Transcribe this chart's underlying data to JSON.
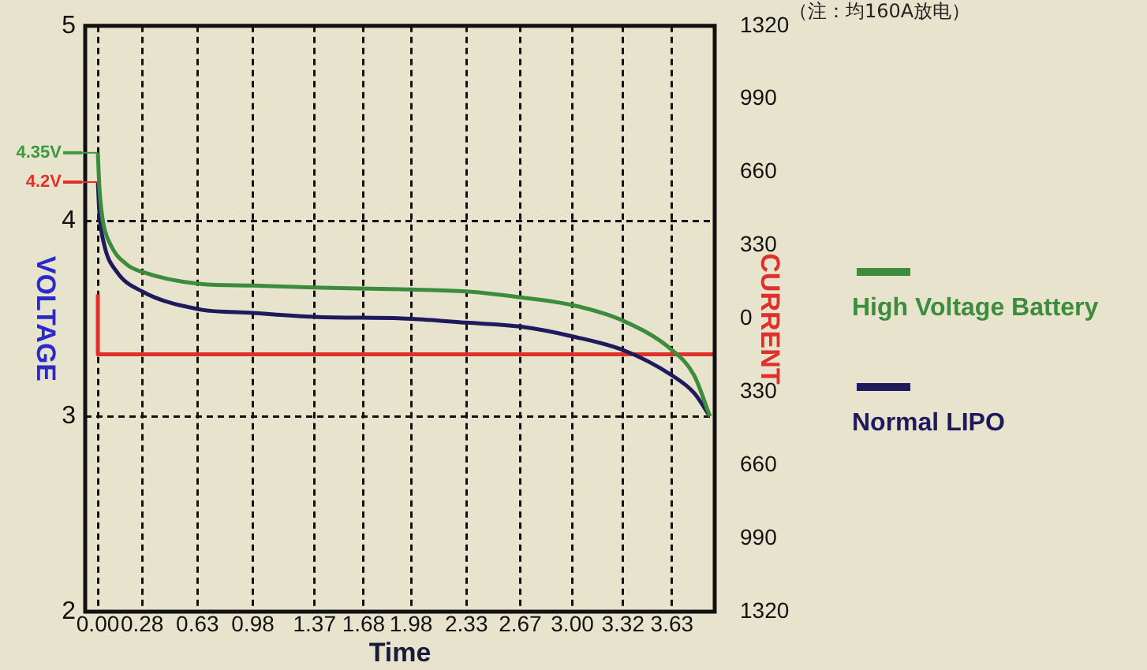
{
  "chart_data": {
    "type": "line",
    "xlabel": "Time",
    "ylabel": "VOLTAGE",
    "y2label": "CURRENT",
    "annotations": [
      "（注：均160A放电）",
      {
        "text": "4.35V",
        "x": 0,
        "y": 4.35
      },
      {
        "text": "4.2V",
        "x": 0,
        "y": 4.2
      }
    ],
    "xlim": [
      -0.08,
      3.9
    ],
    "xticks": [
      {
        "value": 0,
        "label": "0.00"
      },
      0.28,
      0.63,
      0.98,
      1.37,
      1.68,
      1.98,
      2.33,
      2.67,
      {
        "value": 3,
        "label": "3.00"
      },
      3.32,
      3.63
    ],
    "ylim": [
      2,
      5
    ],
    "yticks": [
      2,
      3,
      4,
      5
    ],
    "y2lim": [
      -1320,
      1320
    ],
    "y2ticks": [
      {
        "value": -1320,
        "label": "1320"
      },
      {
        "value": -990,
        "label": "990"
      },
      {
        "value": -660,
        "label": "660"
      },
      {
        "value": -330,
        "label": "330"
      },
      0,
      330,
      660,
      990,
      1320
    ],
    "grid": true,
    "legend": "right",
    "marker": "none",
    "line_style": "solid",
    "series": [
      {
        "name": "High Voltage Battery",
        "color": "#3c8c3c",
        "x": [
          0,
          0.01,
          0.03,
          0.08,
          0.18,
          0.28,
          0.63,
          0.98,
          1.37,
          1.98,
          2.33,
          2.67,
          3.0,
          3.32,
          3.63,
          3.77,
          3.87
        ],
        "values": [
          4.35,
          4.17,
          4.01,
          3.88,
          3.78,
          3.74,
          3.68,
          3.67,
          3.66,
          3.65,
          3.64,
          3.61,
          3.57,
          3.49,
          3.34,
          3.21,
          3.0
        ]
      },
      {
        "name": "Normal LIPO",
        "color": "#1f1a5e",
        "x": [
          0,
          0.01,
          0.04,
          0.12,
          0.28,
          0.63,
          0.98,
          1.37,
          1.98,
          2.33,
          2.67,
          3.0,
          3.32,
          3.63,
          3.77,
          3.87
        ],
        "values": [
          4.2,
          4.04,
          3.88,
          3.74,
          3.64,
          3.55,
          3.53,
          3.51,
          3.5,
          3.48,
          3.46,
          3.41,
          3.34,
          3.21,
          3.12,
          3.0
        ]
      },
      {
        "color": "#e0302a",
        "axis": "y2",
        "x": [
          0,
          0,
          3.9
        ],
        "values": [
          110,
          -160,
          -160
        ]
      }
    ]
  }
}
